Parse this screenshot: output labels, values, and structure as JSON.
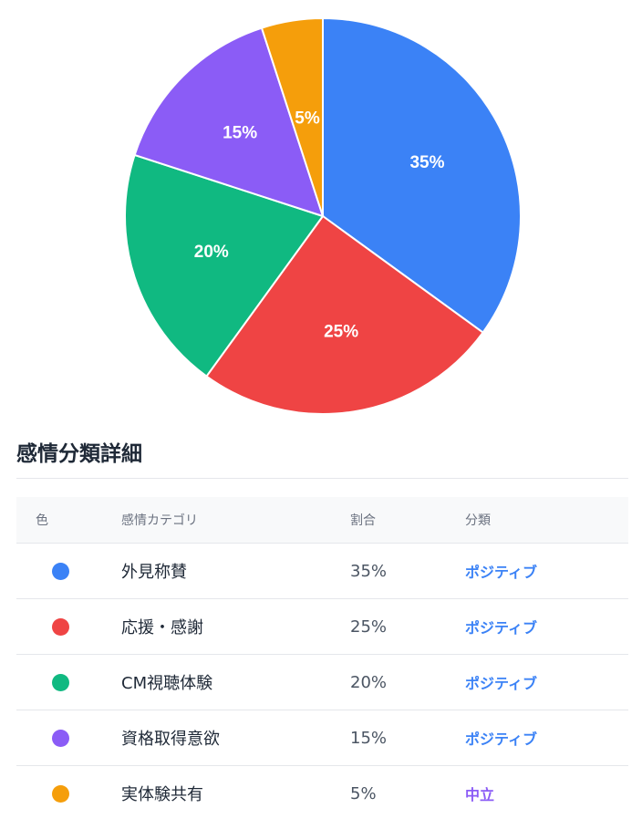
{
  "chart_data": {
    "type": "pie",
    "slices": [
      {
        "label": "外見称賛",
        "value": 35,
        "display": "35%",
        "color": "#3b82f6"
      },
      {
        "label": "応援・感謝",
        "value": 25,
        "display": "25%",
        "color": "#ef4444"
      },
      {
        "label": "CM視聴体験",
        "value": 20,
        "display": "20%",
        "color": "#10b981"
      },
      {
        "label": "資格取得意欲",
        "value": 15,
        "display": "15%",
        "color": "#8b5cf6"
      },
      {
        "label": "実体験共有",
        "value": 5,
        "display": "5%",
        "color": "#f59e0b"
      }
    ]
  },
  "details": {
    "title": "感情分類詳細",
    "headers": {
      "color": "色",
      "category": "感情カテゴリ",
      "ratio": "割合",
      "classification": "分類"
    },
    "rows": [
      {
        "category": "外見称賛",
        "ratio": "35%",
        "classification": "ポジティブ",
        "dot_color": "#3b82f6",
        "class_color": "#3b82f6"
      },
      {
        "category": "応援・感謝",
        "ratio": "25%",
        "classification": "ポジティブ",
        "dot_color": "#ef4444",
        "class_color": "#3b82f6"
      },
      {
        "category": "CM視聴体験",
        "ratio": "20%",
        "classification": "ポジティブ",
        "dot_color": "#10b981",
        "class_color": "#3b82f6"
      },
      {
        "category": "資格取得意欲",
        "ratio": "15%",
        "classification": "ポジティブ",
        "dot_color": "#8b5cf6",
        "class_color": "#3b82f6"
      },
      {
        "category": "実体験共有",
        "ratio": "5%",
        "classification": "中立",
        "dot_color": "#f59e0b",
        "class_color": "#8b5cf6"
      }
    ]
  }
}
